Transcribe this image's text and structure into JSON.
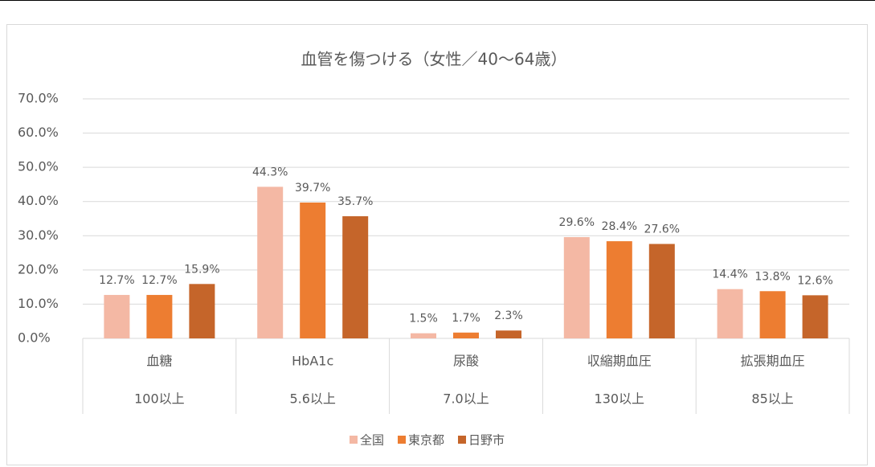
{
  "chart_data": {
    "type": "bar",
    "title": "血管を傷つける（女性／40～64歳）",
    "categories": [
      "血糖",
      "HbA1c",
      "尿酸",
      "収縮期血圧",
      "拡張期血圧"
    ],
    "category_thresholds": [
      "100以上",
      "5.6以上",
      "7.0以上",
      "130以上",
      "85以上"
    ],
    "series": [
      {
        "name": "全国",
        "color": "#f4b8a4",
        "values": [
          12.7,
          44.3,
          1.5,
          29.6,
          14.4
        ],
        "value_labels": [
          "12.7%",
          "44.3%",
          "1.5%",
          "29.6%",
          "14.4%"
        ]
      },
      {
        "name": "東京都",
        "color": "#ed7d31",
        "values": [
          12.7,
          39.7,
          1.7,
          28.4,
          13.8
        ],
        "value_labels": [
          "12.7%",
          "39.7%",
          "1.7%",
          "28.4%",
          "13.8%"
        ]
      },
      {
        "name": "日野市",
        "color": "#c5652a",
        "values": [
          15.9,
          35.7,
          2.3,
          27.6,
          12.6
        ],
        "value_labels": [
          "15.9%",
          "35.7%",
          "2.3%",
          "27.6%",
          "12.6%"
        ]
      }
    ],
    "ylim": [
      0,
      70
    ],
    "yticks": [
      {
        "value": 0,
        "label": "0.0%"
      },
      {
        "value": 10,
        "label": "10.0%"
      },
      {
        "value": 20,
        "label": "20.0%"
      },
      {
        "value": 30,
        "label": "30.0%"
      },
      {
        "value": 40,
        "label": "40.0%"
      },
      {
        "value": 50,
        "label": "50.0%"
      },
      {
        "value": 60,
        "label": "60.0%"
      },
      {
        "value": 70,
        "label": "70.0%"
      }
    ],
    "grid": true,
    "legend": "bottom"
  }
}
